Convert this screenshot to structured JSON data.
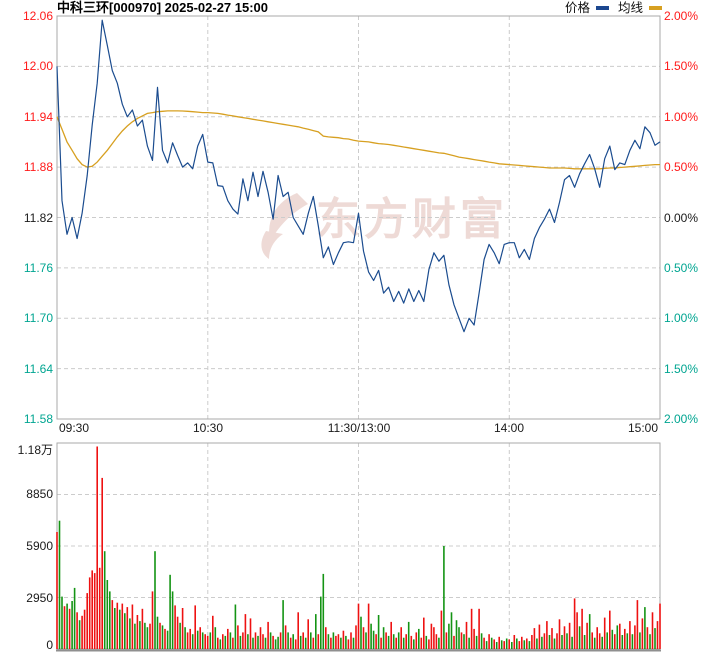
{
  "header": {
    "title": "中科三环[000970] 2025-02-27 15:00"
  },
  "legend": {
    "price": {
      "label": "价格",
      "color": "#1c478f"
    },
    "avg": {
      "label": "均线",
      "color": "#d7a021"
    }
  },
  "watermark": {
    "text": "东方财富",
    "color": "#eedad6"
  },
  "palette": {
    "up": "#ff1a1a",
    "down": "#00a591",
    "neutral": "#1a1a1a",
    "bar_up": "#ee1111",
    "bar_down": "#149414",
    "price_line": "#1b4c8f",
    "avg_line": "#d7a021",
    "grid": "#cccccc",
    "border": "#a9a9a9",
    "border_heavy": "#8f8f8f"
  },
  "chart_data": {
    "type": "line",
    "subtype": "intraday price/average with volume bars",
    "title": "中科三环[000970] 2025-02-27 15:00",
    "x_axis": {
      "labels": [
        "09:30",
        "10:30",
        "11:30/13:00",
        "14:00",
        "15:00"
      ],
      "minutes": [
        0,
        60,
        120,
        180,
        240
      ],
      "total_minutes": 240
    },
    "price_axis": {
      "range": [
        11.58,
        12.06
      ],
      "ticks": [
        {
          "label": "12.06",
          "tone": "up"
        },
        {
          "label": "12.00",
          "tone": "up"
        },
        {
          "label": "11.94",
          "tone": "up"
        },
        {
          "label": "11.88",
          "tone": "up"
        },
        {
          "label": "11.82",
          "tone": "neutral"
        },
        {
          "label": "11.76",
          "tone": "down"
        },
        {
          "label": "11.70",
          "tone": "down"
        },
        {
          "label": "11.64",
          "tone": "down"
        },
        {
          "label": "11.58",
          "tone": "down"
        }
      ]
    },
    "pct_axis": {
      "range_pct": [
        -2.0,
        2.0
      ],
      "ticks": [
        {
          "label": "2.00%",
          "tone": "up"
        },
        {
          "label": "1.50%",
          "tone": "up"
        },
        {
          "label": "1.00%",
          "tone": "up"
        },
        {
          "label": "0.50%",
          "tone": "up"
        },
        {
          "label": "0.00%",
          "tone": "neutral"
        },
        {
          "label": "0.50%",
          "tone": "down"
        },
        {
          "label": "1.00%",
          "tone": "down"
        },
        {
          "label": "1.50%",
          "tone": "down"
        },
        {
          "label": "2.00%",
          "tone": "down"
        }
      ]
    },
    "series": {
      "step_minutes": 2,
      "price": {
        "name": "价格",
        "values": [
          12.0,
          11.84,
          11.8,
          11.82,
          11.795,
          11.825,
          11.87,
          11.93,
          11.98,
          12.055,
          12.025,
          11.995,
          11.98,
          11.955,
          11.94,
          11.948,
          11.929,
          11.936,
          11.905,
          11.888,
          11.975,
          11.9,
          11.885,
          11.909,
          11.894,
          11.88,
          11.885,
          11.878,
          11.905,
          11.919,
          11.886,
          11.885,
          11.858,
          11.857,
          11.84,
          11.83,
          11.824,
          11.866,
          11.84,
          11.874,
          11.845,
          11.875,
          11.85,
          11.818,
          11.87,
          11.845,
          11.85,
          11.82,
          11.81,
          11.8,
          11.825,
          11.845,
          11.81,
          11.772,
          11.785,
          11.764,
          11.778,
          11.79,
          11.791,
          11.79,
          11.825,
          11.78,
          11.755,
          11.745,
          11.757,
          11.73,
          11.737,
          11.72,
          11.732,
          11.718,
          11.735,
          11.72,
          11.733,
          11.72,
          11.758,
          11.778,
          11.768,
          11.775,
          11.74,
          11.716,
          11.7,
          11.684,
          11.7,
          11.692,
          11.73,
          11.77,
          11.788,
          11.778,
          11.765,
          11.788,
          11.79,
          11.79,
          11.772,
          11.782,
          11.77,
          11.795,
          11.808,
          11.818,
          11.83,
          11.814,
          11.838,
          11.865,
          11.87,
          11.856,
          11.872,
          11.884,
          11.895,
          11.878,
          11.856,
          11.89,
          11.905,
          11.877,
          11.885,
          11.883,
          11.9,
          11.912,
          11.902,
          11.928,
          11.921,
          11.906,
          11.91
        ]
      },
      "avg": {
        "name": "均线",
        "values": [
          11.94,
          11.925,
          11.91,
          11.9,
          11.89,
          11.883,
          11.88,
          11.881,
          11.886,
          11.893,
          11.9,
          11.908,
          11.916,
          11.923,
          11.929,
          11.934,
          11.938,
          11.941,
          11.944,
          11.945,
          11.946,
          11.9465,
          11.947,
          11.947,
          11.947,
          11.9468,
          11.9465,
          11.946,
          11.9455,
          11.945,
          11.945,
          11.9445,
          11.944,
          11.943,
          11.942,
          11.941,
          11.94,
          11.939,
          11.938,
          11.937,
          11.936,
          11.935,
          11.934,
          11.933,
          11.932,
          11.931,
          11.93,
          11.929,
          11.928,
          11.9265,
          11.925,
          11.9235,
          11.922,
          11.917,
          11.916,
          11.9155,
          11.915,
          11.914,
          11.9135,
          11.912,
          11.911,
          11.9105,
          11.91,
          11.909,
          11.908,
          11.9075,
          11.907,
          11.906,
          11.905,
          11.904,
          11.903,
          11.902,
          11.901,
          11.9,
          11.899,
          11.898,
          11.897,
          11.8965,
          11.895,
          11.8935,
          11.892,
          11.891,
          11.89,
          11.889,
          11.888,
          11.887,
          11.886,
          11.885,
          11.884,
          11.8835,
          11.883,
          11.8825,
          11.882,
          11.8815,
          11.881,
          11.8805,
          11.88,
          11.8795,
          11.879,
          11.879,
          11.879,
          11.879,
          11.8785,
          11.878,
          11.878,
          11.878,
          11.878,
          11.878,
          11.878,
          11.8785,
          11.879,
          11.879,
          11.8795,
          11.88,
          11.8805,
          11.881,
          11.8815,
          11.882,
          11.8825,
          11.883,
          11.883
        ]
      }
    },
    "volume": {
      "axis_ticks": [
        "1.18万",
        "8850",
        "5900",
        "2950",
        "0"
      ],
      "max": 11800,
      "encoding": "one bar per minute; positive = up tick (red), negative = down tick (green); magnitude = volume",
      "bars_signed": [
        6700,
        -7350,
        -3000,
        2450,
        -2600,
        2300,
        -2750,
        -3500,
        2100,
        -1650,
        1900,
        2250,
        3200,
        4100,
        4500,
        4350,
        11600,
        4650,
        9800,
        -5600,
        -3950,
        -3300,
        2800,
        -2350,
        2650,
        -2250,
        2600,
        -2050,
        2400,
        -1750,
        2550,
        -1450,
        1950,
        -1600,
        2300,
        -1500,
        -1250,
        1450,
        3300,
        -5600,
        -1850,
        1500,
        -1350,
        1150,
        -1050,
        -4250,
        -3300,
        2500,
        1850,
        -1500,
        2350,
        -1250,
        950,
        1150,
        -850,
        2500,
        -1050,
        1250,
        -950,
        850,
        750,
        -950,
        1900,
        -1250,
        650,
        -550,
        850,
        -750,
        1150,
        -950,
        650,
        -2550,
        1350,
        -750,
        950,
        2000,
        -850,
        1750,
        -650,
        950,
        -750,
        1250,
        850,
        -650,
        1550,
        -950,
        750,
        -550,
        -700,
        950,
        -2800,
        1350,
        -950,
        650,
        -850,
        550,
        2100,
        -750,
        950,
        -650,
        1700,
        -950,
        650,
        -2000,
        850,
        -3000,
        -4300,
        1250,
        -850,
        650,
        -950,
        750,
        850,
        -650,
        1050,
        -750,
        550,
        950,
        -650,
        1350,
        2600,
        -1850,
        1250,
        -950,
        2600,
        -1450,
        -1050,
        850,
        -1950,
        650,
        -1250,
        950,
        -750,
        1550,
        -850,
        650,
        -950,
        1250,
        -650,
        850,
        -1550,
        750,
        -550,
        950,
        -1150,
        650,
        1800,
        -750,
        550,
        1450,
        1250,
        850,
        -650,
        2200,
        -5900,
        950,
        -1450,
        -2100,
        750,
        -1650,
        -1250,
        950,
        -850,
        1550,
        -650,
        2300,
        1150,
        -750,
        2300,
        -900,
        650,
        -450,
        850,
        -650,
        550,
        -400,
        700,
        -500,
        450,
        -600,
        550,
        -400,
        800,
        -600,
        450,
        700,
        -500,
        600,
        -450,
        800,
        1200,
        -600,
        1400,
        -700,
        900,
        1600,
        -800,
        1200,
        -600,
        900,
        1700,
        -800,
        1300,
        -900,
        1500,
        -700,
        2900,
        2100,
        -1300,
        2300,
        -800,
        1500,
        -2000,
        950,
        -650,
        1250,
        900,
        -700,
        1800,
        -950,
        2200,
        -1100,
        850,
        -1350,
        1450,
        -800,
        1150,
        -900,
        1600,
        -850,
        1350,
        2800,
        -950,
        1750,
        -2400,
        1250,
        -850,
        2100,
        -1200,
        1600,
        2600
      ]
    },
    "grid": true,
    "legend_position": "top-right"
  }
}
